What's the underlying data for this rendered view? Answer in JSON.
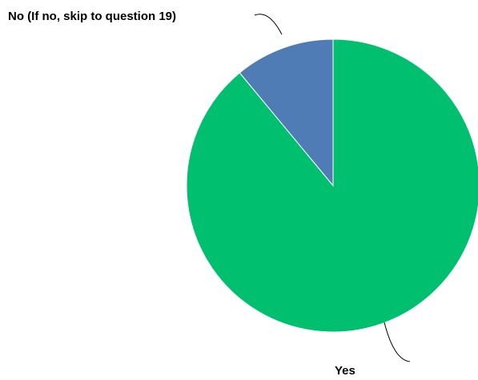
{
  "chart_data": {
    "type": "pie",
    "title": "",
    "slices": [
      {
        "label": "Yes",
        "value": 89,
        "color": "#00BF6F"
      },
      {
        "label": "No (If no, skip to question 19)",
        "value": 11,
        "color": "#507CB6"
      }
    ],
    "start_angle_deg": 0,
    "direction": "clockwise",
    "legend": "none"
  }
}
